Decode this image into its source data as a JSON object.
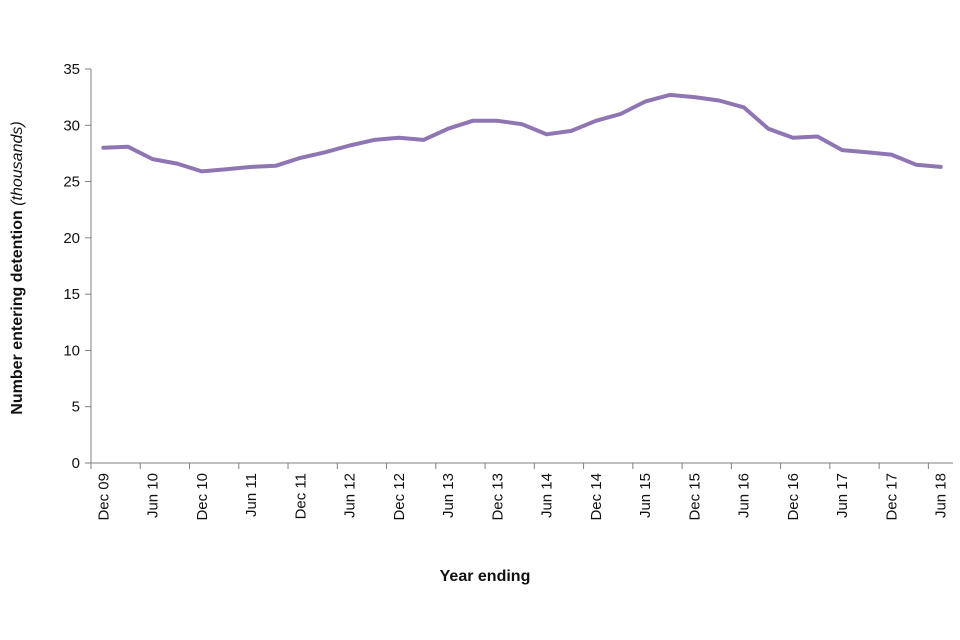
{
  "chart_data": {
    "type": "line",
    "xlabel": "Year ending",
    "ylabel": "Number entering detention",
    "ylabel_unit": "(thousands)",
    "ylim": [
      0,
      35
    ],
    "yticks": [
      0,
      5,
      10,
      15,
      20,
      25,
      30,
      35
    ],
    "grid": false,
    "legend": "none",
    "colors": {
      "line": "#8e76b2",
      "axis": "#808080",
      "text": "#111111"
    },
    "x": [
      "Dec 09",
      "Mar 10",
      "Jun 10",
      "Sep 10",
      "Dec 10",
      "Mar 11",
      "Jun 11",
      "Sep 11",
      "Dec 11",
      "Mar 12",
      "Jun 12",
      "Sep 12",
      "Dec 12",
      "Mar 13",
      "Jun 13",
      "Sep 13",
      "Dec 13",
      "Mar 14",
      "Jun 14",
      "Sep 14",
      "Dec 14",
      "Mar 15",
      "Jun 15",
      "Sep 15",
      "Dec 15",
      "Mar 16",
      "Jun 16",
      "Sep 16",
      "Dec 16",
      "Mar 17",
      "Jun 17",
      "Sep 17",
      "Dec 17",
      "Mar 18",
      "Jun 18"
    ],
    "tick_labels": [
      "Dec 09",
      "Jun 10",
      "Dec 10",
      "Jun 11",
      "Dec 11",
      "Jun 12",
      "Dec 12",
      "Jun 13",
      "Dec 13",
      "Jun 14",
      "Dec 14",
      "Jun 15",
      "Dec 15",
      "Jun 16",
      "Dec 16",
      "Jun 17",
      "Dec 17",
      "Jun 18"
    ],
    "series": [
      {
        "values": [
          28.0,
          28.1,
          27.0,
          26.6,
          25.9,
          26.1,
          26.3,
          26.4,
          27.1,
          27.6,
          28.2,
          28.7,
          28.9,
          28.7,
          29.7,
          30.4,
          30.4,
          30.1,
          29.2,
          29.5,
          30.4,
          31.0,
          32.1,
          32.7,
          32.5,
          32.2,
          31.6,
          29.7,
          28.9,
          29.0,
          27.8,
          27.6,
          27.4,
          26.5,
          26.3
        ]
      }
    ]
  }
}
